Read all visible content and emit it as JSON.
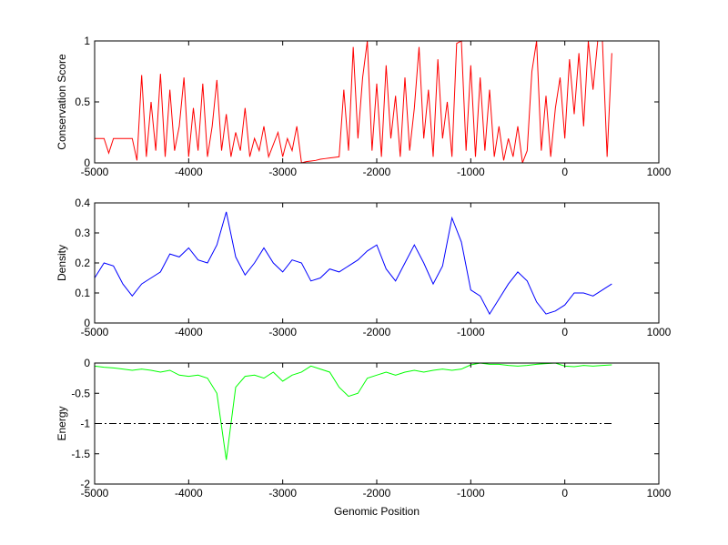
{
  "chart_data": [
    {
      "type": "line",
      "ylabel": "Conservation Score",
      "x": [
        -5000,
        -4950,
        -4900,
        -4850,
        -4800,
        -4750,
        -4700,
        -4650,
        -4600,
        -4550,
        -4500,
        -4450,
        -4400,
        -4350,
        -4300,
        -4250,
        -4200,
        -4150,
        -4100,
        -4050,
        -4000,
        -3950,
        -3900,
        -3850,
        -3800,
        -3750,
        -3700,
        -3650,
        -3600,
        -3550,
        -3500,
        -3450,
        -3400,
        -3350,
        -3300,
        -3250,
        -3200,
        -3150,
        -3100,
        -3050,
        -3000,
        -2950,
        -2900,
        -2850,
        -2800,
        -2750,
        -2700,
        -2650,
        -2600,
        -2550,
        -2500,
        -2450,
        -2400,
        -2350,
        -2300,
        -2250,
        -2200,
        -2150,
        -2100,
        -2050,
        -2000,
        -1950,
        -1900,
        -1850,
        -1800,
        -1750,
        -1700,
        -1650,
        -1600,
        -1550,
        -1500,
        -1450,
        -1400,
        -1350,
        -1300,
        -1250,
        -1200,
        -1150,
        -1100,
        -1050,
        -1000,
        -950,
        -900,
        -850,
        -800,
        -750,
        -700,
        -650,
        -600,
        -550,
        -500,
        -450,
        -400,
        -350,
        -300,
        -250,
        -200,
        -150,
        -100,
        -50,
        0,
        50,
        100,
        150,
        200,
        250,
        300,
        350,
        400,
        450,
        500
      ],
      "values": [
        0.2,
        0.2,
        0.2,
        0.08,
        0.2,
        0.2,
        0.2,
        0.2,
        0.2,
        0.02,
        0.72,
        0.05,
        0.5,
        0.1,
        0.73,
        0.05,
        0.6,
        0.1,
        0.3,
        0.7,
        0.05,
        0.45,
        0.1,
        0.65,
        0.05,
        0.3,
        0.68,
        0.1,
        0.4,
        0.05,
        0.25,
        0.1,
        0.45,
        0.05,
        0.2,
        0.1,
        0.3,
        0.05,
        0.15,
        0.25,
        0.05,
        0.2,
        0.1,
        0.3,
        0.0,
        0.01,
        0.015,
        0.02,
        0.03,
        0.035,
        0.04,
        0.045,
        0.05,
        0.6,
        0.1,
        0.95,
        0.2,
        0.7,
        1.0,
        0.1,
        0.65,
        0.05,
        0.8,
        0.2,
        0.55,
        0.05,
        0.7,
        0.1,
        0.45,
        0.95,
        0.2,
        0.6,
        0.05,
        0.85,
        0.2,
        0.5,
        0.05,
        0.98,
        1.0,
        0.1,
        0.8,
        0.05,
        0.7,
        0.1,
        0.6,
        0.05,
        0.3,
        0.02,
        0.2,
        0.05,
        0.3,
        0.0,
        0.1,
        0.75,
        1.0,
        0.1,
        0.55,
        0.05,
        0.45,
        0.7,
        0.2,
        0.85,
        0.4,
        0.9,
        0.3,
        1.0,
        0.6,
        1.0,
        1.0,
        0.05,
        0.9
      ],
      "color": "#ff0000",
      "xlim": [
        -5000,
        1000
      ],
      "ylim": [
        0,
        1
      ],
      "xticks": [
        -5000,
        -4000,
        -3000,
        -2000,
        -1000,
        0,
        1000
      ],
      "yticks": [
        0,
        0.5,
        1
      ]
    },
    {
      "type": "line",
      "ylabel": "Density",
      "x": [
        -5000,
        -4900,
        -4800,
        -4700,
        -4600,
        -4500,
        -4400,
        -4300,
        -4200,
        -4100,
        -4000,
        -3900,
        -3800,
        -3700,
        -3600,
        -3500,
        -3400,
        -3300,
        -3200,
        -3100,
        -3000,
        -2900,
        -2800,
        -2700,
        -2600,
        -2500,
        -2400,
        -2300,
        -2200,
        -2100,
        -2000,
        -1900,
        -1800,
        -1700,
        -1600,
        -1500,
        -1400,
        -1300,
        -1200,
        -1100,
        -1000,
        -900,
        -800,
        -700,
        -600,
        -500,
        -400,
        -300,
        -200,
        -100,
        0,
        100,
        200,
        300,
        400,
        500
      ],
      "values": [
        0.15,
        0.2,
        0.19,
        0.13,
        0.09,
        0.13,
        0.15,
        0.17,
        0.23,
        0.22,
        0.25,
        0.21,
        0.2,
        0.26,
        0.37,
        0.22,
        0.16,
        0.2,
        0.25,
        0.2,
        0.17,
        0.21,
        0.2,
        0.14,
        0.15,
        0.18,
        0.17,
        0.19,
        0.21,
        0.24,
        0.26,
        0.18,
        0.14,
        0.2,
        0.26,
        0.2,
        0.13,
        0.19,
        0.35,
        0.27,
        0.11,
        0.09,
        0.03,
        0.08,
        0.13,
        0.17,
        0.14,
        0.07,
        0.03,
        0.04,
        0.06,
        0.1,
        0.1,
        0.09,
        0.11,
        0.13
      ],
      "color": "#0000ff",
      "xlim": [
        -5000,
        1000
      ],
      "ylim": [
        0,
        0.4
      ],
      "xticks": [
        -5000,
        -4000,
        -3000,
        -2000,
        -1000,
        0,
        1000
      ],
      "yticks": [
        0,
        0.1,
        0.2,
        0.3,
        0.4
      ]
    },
    {
      "type": "line",
      "ylabel": "Energy",
      "xlabel": "Genomic Position",
      "x": [
        -5000,
        -4900,
        -4800,
        -4700,
        -4600,
        -4500,
        -4400,
        -4300,
        -4200,
        -4100,
        -4000,
        -3900,
        -3800,
        -3700,
        -3600,
        -3500,
        -3400,
        -3300,
        -3200,
        -3100,
        -3000,
        -2900,
        -2800,
        -2700,
        -2600,
        -2500,
        -2400,
        -2300,
        -2200,
        -2100,
        -2000,
        -1900,
        -1800,
        -1700,
        -1600,
        -1500,
        -1400,
        -1300,
        -1200,
        -1100,
        -1000,
        -900,
        -800,
        -700,
        -600,
        -500,
        -400,
        -300,
        -200,
        -100,
        0,
        100,
        200,
        300,
        400,
        500
      ],
      "values": [
        -0.05,
        -0.07,
        -0.08,
        -0.1,
        -0.12,
        -0.1,
        -0.12,
        -0.15,
        -0.12,
        -0.2,
        -0.22,
        -0.2,
        -0.25,
        -0.5,
        -1.6,
        -0.4,
        -0.22,
        -0.2,
        -0.25,
        -0.15,
        -0.3,
        -0.2,
        -0.15,
        -0.05,
        -0.1,
        -0.15,
        -0.4,
        -0.55,
        -0.5,
        -0.25,
        -0.2,
        -0.15,
        -0.2,
        -0.15,
        -0.12,
        -0.15,
        -0.12,
        -0.1,
        -0.12,
        -0.1,
        -0.03,
        0,
        -0.02,
        -0.02,
        -0.04,
        -0.05,
        -0.04,
        -0.02,
        -0.01,
        0,
        -0.05,
        -0.06,
        -0.04,
        -0.05,
        -0.04,
        -0.03
      ],
      "color": "#00ff00",
      "hline": -1,
      "xlim": [
        -5000,
        1000
      ],
      "ylim": [
        -2,
        0
      ],
      "xticks": [
        -5000,
        -4000,
        -3000,
        -2000,
        -1000,
        0,
        1000
      ],
      "yticks": [
        -2,
        -1.5,
        -1,
        -0.5,
        0
      ]
    }
  ]
}
